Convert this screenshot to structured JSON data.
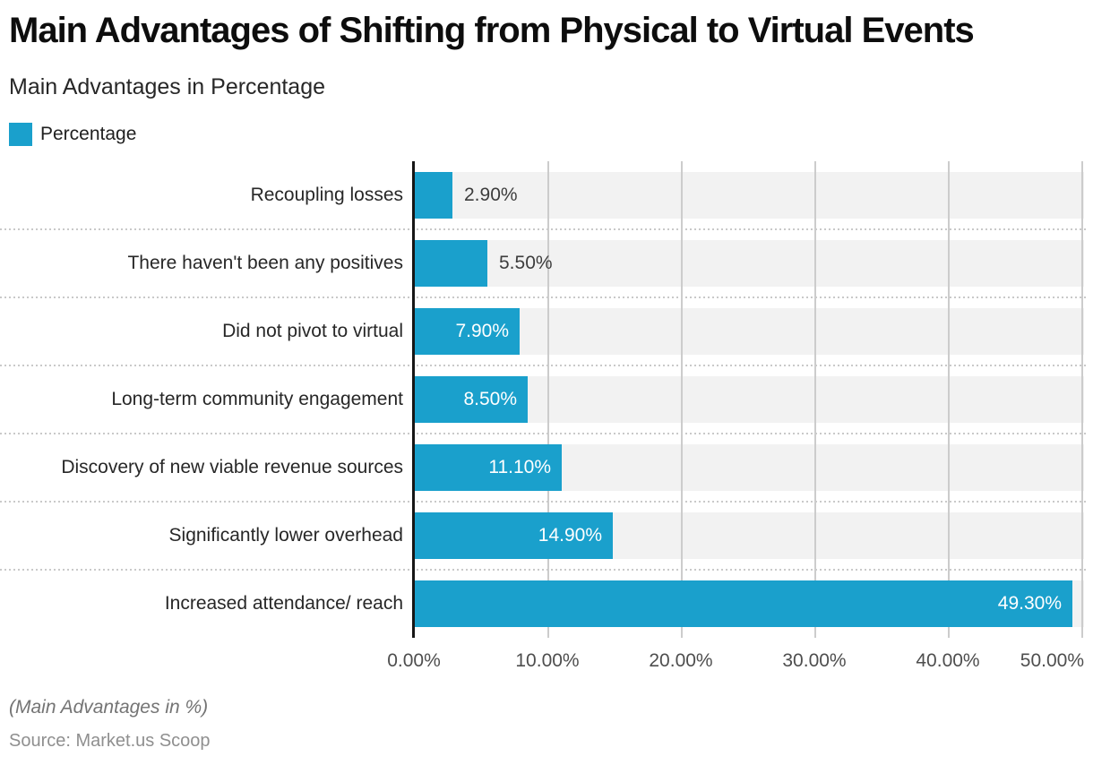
{
  "header": {
    "title": "Main Advantages of Shifting from Physical to Virtual Events",
    "subtitle": "Main Advantages in Percentage"
  },
  "legend": {
    "label": "Percentage",
    "swatch_color": "#1aa0cc"
  },
  "chart_data": {
    "type": "bar",
    "orientation": "horizontal",
    "title": "Main Advantages of Shifting from Physical to Virtual Events",
    "subtitle": "Main Advantages in Percentage",
    "series_name": "Percentage",
    "categories": [
      "Recoupling losses",
      "There haven't been any positives",
      "Did not pivot to virtual",
      "Long-term community engagement",
      "Discovery of new viable revenue sources",
      "Significantly lower overhead",
      "Increased attendance/ reach"
    ],
    "values": [
      2.9,
      5.5,
      7.9,
      8.5,
      11.1,
      14.9,
      49.3
    ],
    "value_labels": [
      "2.90%",
      "5.50%",
      "7.90%",
      "8.50%",
      "11.10%",
      "14.90%",
      "49.30%"
    ],
    "xlabel": "",
    "ylabel": "",
    "xlim": [
      0,
      50.2
    ],
    "x_ticks": [
      0,
      10,
      20,
      30,
      40,
      50
    ],
    "x_tick_labels": [
      "0.00%",
      "10.00%",
      "20.00%",
      "30.00%",
      "40.00%",
      "50.00%"
    ],
    "grid": "vertical",
    "legend_position": "top-left",
    "bar_color": "#1aa0cc",
    "row_band_color": "#f2f2f2",
    "gridline_color": "#cccccc",
    "axis_line_color": "#161616"
  },
  "footer": {
    "note": "(Main Advantages in %)",
    "source": "Source: Market.us Scoop"
  }
}
